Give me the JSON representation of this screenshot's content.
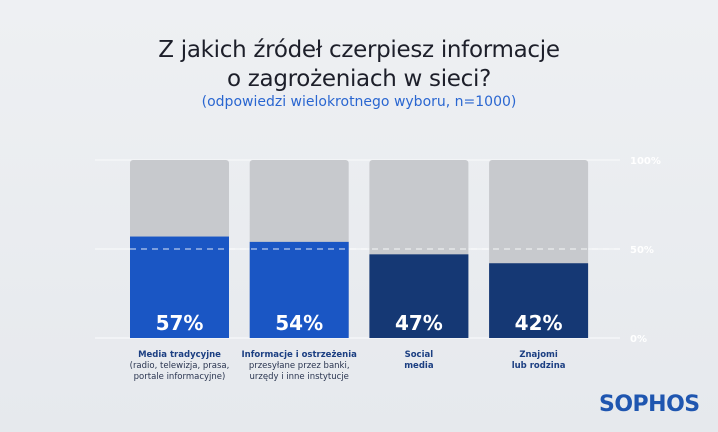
{
  "chart_data": {
    "type": "bar",
    "title": "Z jakich źródeł czerpiesz informacje o zagrożeniach w sieci?",
    "title_lines": [
      "Z jakich źródeł czerpiesz informacje",
      "o zagrożeniach w sieci?"
    ],
    "subtitle": "(odpowiedzi wielokrotnego wyboru, n=1000)",
    "categories": [
      {
        "bold": "Media tradycyjne",
        "lines": [
          "(radio, telewizja, prasa,",
          "portale informacyjne)"
        ]
      },
      {
        "bold": "Informacje i ostrzeżenia",
        "lines": [
          "przesyłane przez banki,",
          "urzędy i inne instytucje"
        ]
      },
      {
        "bold": "Social",
        "lines": [
          "media"
        ]
      },
      {
        "bold": "Znajomi",
        "lines": [
          "lub rodzina"
        ]
      }
    ],
    "values": [
      57,
      54,
      47,
      42
    ],
    "value_labels": [
      "57%",
      "54%",
      "47%",
      "42%"
    ],
    "bar_colors": [
      "#1a56c4",
      "#1a56c4",
      "#153874",
      "#153874"
    ],
    "background_bar_color": "#c7c9cd",
    "ylim": [
      0,
      100
    ],
    "yticks": [
      {
        "value": 100,
        "label": "100%"
      },
      {
        "value": 50,
        "label": "50%"
      },
      {
        "value": 0,
        "label": "0%"
      }
    ],
    "reference_line": 50
  },
  "brand": {
    "logo": "SOPHOS",
    "color": "#1f56b0"
  }
}
